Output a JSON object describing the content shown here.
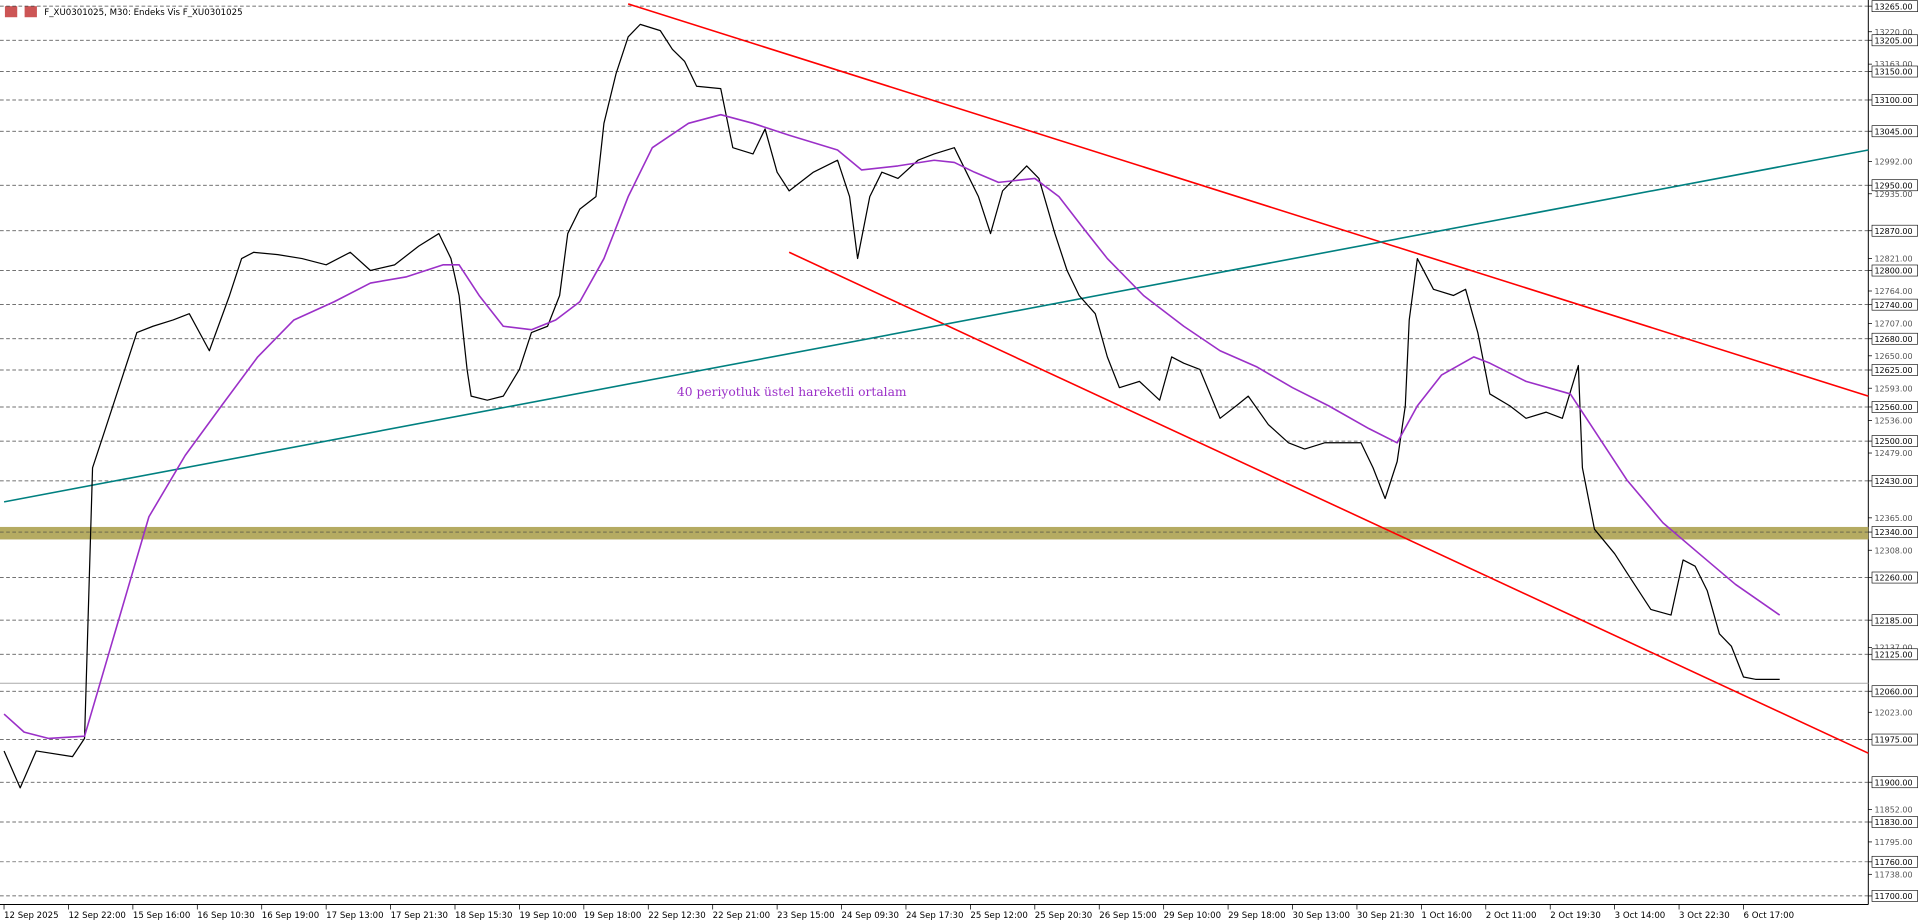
{
  "chart_data": {
    "type": "line",
    "title": "F_XU0301025, M30:  Endeks Vis F_XU0301025",
    "annotation": "40 periyotluk üstel hareketli ortalam",
    "annotation_color": "#9b30c8",
    "xlim": [
      -1,
      463
    ],
    "ylim": [
      11700,
      13265
    ],
    "xticks": [
      {
        "value": 0,
        "label": "12 Sep 2025"
      },
      {
        "value": 16,
        "label": "12 Sep 22:00"
      },
      {
        "value": 32,
        "label": "15 Sep 16:00"
      },
      {
        "value": 48,
        "label": "16 Sep 10:30"
      },
      {
        "value": 64,
        "label": "16 Sep 19:00"
      },
      {
        "value": 80,
        "label": "17 Sep 13:00"
      },
      {
        "value": 96,
        "label": "17 Sep 21:30"
      },
      {
        "value": 112,
        "label": "18 Sep 15:30"
      },
      {
        "value": 128,
        "label": "19 Sep 10:00"
      },
      {
        "value": 144,
        "label": "19 Sep 18:00"
      },
      {
        "value": 160,
        "label": "22 Sep 12:30"
      },
      {
        "value": 176,
        "label": "22 Sep 21:00"
      },
      {
        "value": 192,
        "label": "23 Sep 15:00"
      },
      {
        "value": 208,
        "label": "24 Sep 09:30"
      },
      {
        "value": 224,
        "label": "24 Sep 17:30"
      },
      {
        "value": 240,
        "label": "25 Sep 12:00"
      },
      {
        "value": 256,
        "label": "25 Sep 20:30"
      },
      {
        "value": 272,
        "label": "26 Sep 15:00"
      },
      {
        "value": 288,
        "label": "29 Sep 10:00"
      },
      {
        "value": 304,
        "label": "29 Sep 18:00"
      },
      {
        "value": 320,
        "label": "30 Sep 13:00"
      },
      {
        "value": 336,
        "label": "30 Sep 21:30"
      },
      {
        "value": 352,
        "label": "1 Oct 16:00"
      },
      {
        "value": 368,
        "label": "2 Oct 11:00"
      },
      {
        "value": 384,
        "label": "2 Oct 19:30"
      },
      {
        "value": 400,
        "label": "3 Oct 14:00"
      },
      {
        "value": 416,
        "label": "3 Oct 22:30"
      },
      {
        "value": 432,
        "label": "6 Oct 17:00"
      }
    ],
    "yticks": [
      {
        "value": 13265,
        "label": "13265.00"
      },
      {
        "value": 13220,
        "label": "13220.00"
      },
      {
        "value": 13205,
        "label": "13205.00"
      },
      {
        "value": 13163,
        "label": "13163.00"
      },
      {
        "value": 13150,
        "label": "13150.00"
      },
      {
        "value": 13100,
        "label": "13100.00"
      },
      {
        "value": 13045,
        "label": "13045.00"
      },
      {
        "value": 12992,
        "label": "12992.00"
      },
      {
        "value": 12950,
        "label": "12950.00"
      },
      {
        "value": 12935,
        "label": "12935.00"
      },
      {
        "value": 12870,
        "label": "12870.00"
      },
      {
        "value": 12821,
        "label": "12821.00"
      },
      {
        "value": 12800,
        "label": "12800.00"
      },
      {
        "value": 12764,
        "label": "12764.00"
      },
      {
        "value": 12740,
        "label": "12740.00"
      },
      {
        "value": 12707,
        "label": "12707.00"
      },
      {
        "value": 12680,
        "label": "12680.00"
      },
      {
        "value": 12650,
        "label": "12650.00"
      },
      {
        "value": 12625,
        "label": "12625.00"
      },
      {
        "value": 12593,
        "label": "12593.00"
      },
      {
        "value": 12560,
        "label": "12560.00"
      },
      {
        "value": 12536,
        "label": "12536.00"
      },
      {
        "value": 12500,
        "label": "12500.00"
      },
      {
        "value": 12479,
        "label": "12479.00"
      },
      {
        "value": 12430,
        "label": "12430.00"
      },
      {
        "value": 12365,
        "label": "12365.00"
      },
      {
        "value": 12340,
        "label": "12340.00"
      },
      {
        "value": 12308,
        "label": "12308.00"
      },
      {
        "value": 12260,
        "label": "12260.00"
      },
      {
        "value": 12185,
        "label": "12185.00"
      },
      {
        "value": 12137,
        "label": "12137.00"
      },
      {
        "value": 12125,
        "label": "12125.00"
      },
      {
        "value": 12060,
        "label": "12060.00"
      },
      {
        "value": 12023,
        "label": "12023.00"
      },
      {
        "value": 11975,
        "label": "11975.00"
      },
      {
        "value": 11900,
        "label": "11900.00"
      },
      {
        "value": 11852,
        "label": "11852.00"
      },
      {
        "value": 11830,
        "label": "11830.00"
      },
      {
        "value": 11795,
        "label": "11795.00"
      },
      {
        "value": 11760,
        "label": "11760.00"
      },
      {
        "value": 11738,
        "label": "11738.00"
      },
      {
        "value": 11700,
        "label": "11700.00"
      }
    ],
    "levels": [
      13265,
      13205,
      13150,
      13100,
      13045,
      12950,
      12870,
      12800,
      12740,
      12680,
      12625,
      12560,
      12500,
      12430,
      12340,
      12260,
      12185,
      12125,
      12060,
      11975,
      11900,
      11830,
      11760,
      11700
    ],
    "band": [
      12327,
      12349
    ],
    "band_color": "#b5ab62",
    "current_price": 12074,
    "series": [
      {
        "color": "#000000",
        "x": [
          0,
          4,
          8,
          17,
          20,
          22,
          25,
          30,
          33,
          37,
          42,
          46,
          51,
          56,
          59,
          62,
          68,
          74,
          80,
          86,
          91,
          97,
          103,
          108,
          111,
          113,
          115,
          116,
          120,
          124,
          128,
          131,
          135,
          138,
          140,
          143,
          147,
          149,
          152,
          155,
          158,
          163,
          166,
          169,
          172,
          178,
          181,
          186,
          189,
          192,
          195,
          201,
          207,
          210,
          212,
          215,
          218,
          222,
          227,
          231,
          236,
          239,
          242,
          245,
          248,
          251,
          254,
          257,
          261,
          264,
          267,
          271,
          274,
          277,
          282,
          287,
          290,
          293,
          297,
          302,
          306,
          309,
          314,
          319,
          323,
          328,
          332,
          337,
          340,
          343,
          346,
          348,
          349,
          351,
          355,
          360,
          363,
          366,
          369,
          374,
          378,
          383,
          387,
          391,
          392,
          395,
          400,
          404,
          409,
          414,
          417,
          420,
          423,
          426,
          429,
          432,
          435,
          441
        ],
        "values": [
          11955,
          11890,
          11955,
          11945,
          11977,
          12453,
          12518,
          12626,
          12691,
          12702,
          12713,
          12724,
          12659,
          12756,
          12821,
          12832,
          12828,
          12821,
          12810,
          12832,
          12800,
          12810,
          12843,
          12865,
          12821,
          12756,
          12626,
          12579,
          12572,
          12579,
          12626,
          12691,
          12702,
          12756,
          12865,
          12908,
          12930,
          13059,
          13146,
          13211,
          13233,
          13222,
          13189,
          13168,
          13124,
          13120,
          13016,
          13005,
          13049,
          12973,
          12940,
          12973,
          12994,
          12930,
          12821,
          12930,
          12973,
          12962,
          12994,
          13005,
          13016,
          12973,
          12930,
          12865,
          12940,
          12962,
          12984,
          12962,
          12865,
          12800,
          12756,
          12724,
          12648,
          12594,
          12605,
          12572,
          12648,
          12637,
          12626,
          12540,
          12562,
          12579,
          12529,
          12497,
          12486,
          12497,
          12497,
          12497,
          12453,
          12399,
          12464,
          12562,
          12713,
          12821,
          12767,
          12756,
          12767,
          12691,
          12583,
          12562,
          12540,
          12551,
          12540,
          12633,
          12453,
          12345,
          12302,
          12258,
          12204,
          12194,
          12291,
          12280,
          12237,
          12161,
          12139,
          12085,
          12081,
          12081
        ]
      },
      {
        "color": "#9b30c8",
        "x": [
          0,
          5,
          11,
          20,
          27,
          36,
          45,
          54,
          63,
          72,
          82,
          91,
          100,
          109,
          113,
          118,
          124,
          131,
          137,
          143,
          149,
          155,
          161,
          170,
          178,
          186,
          195,
          207,
          213,
          222,
          231,
          236,
          241,
          247,
          256,
          262,
          268,
          274,
          283,
          293,
          302,
          311,
          320,
          329,
          339,
          346,
          351,
          357,
          365,
          369,
          378,
          389,
          394,
          403,
          412,
          421,
          430,
          441
        ],
        "values": [
          12020,
          11988,
          11977,
          11981,
          12150,
          12367,
          12475,
          12562,
          12648,
          12713,
          12745,
          12778,
          12789,
          12810,
          12810,
          12756,
          12702,
          12696,
          12713,
          12745,
          12821,
          12930,
          13016,
          13059,
          13074,
          13059,
          13038,
          13012,
          12977,
          12984,
          12994,
          12990,
          12973,
          12955,
          12962,
          12930,
          12875,
          12821,
          12756,
          12702,
          12659,
          12631,
          12594,
          12562,
          12522,
          12497,
          12562,
          12616,
          12648,
          12637,
          12605,
          12583,
          12529,
          12432,
          12356,
          12302,
          12248,
          12194
        ]
      }
    ],
    "trendlines": [
      {
        "color": "#ff0000",
        "x": [
          155,
          463
        ],
        "values": [
          13269,
          12579
        ]
      },
      {
        "color": "#ff0000",
        "x": [
          195,
          463
        ],
        "values": [
          12832,
          11951
        ]
      },
      {
        "color": "#008080",
        "x": [
          0,
          463
        ],
        "values": [
          12393,
          13012
        ]
      }
    ]
  }
}
